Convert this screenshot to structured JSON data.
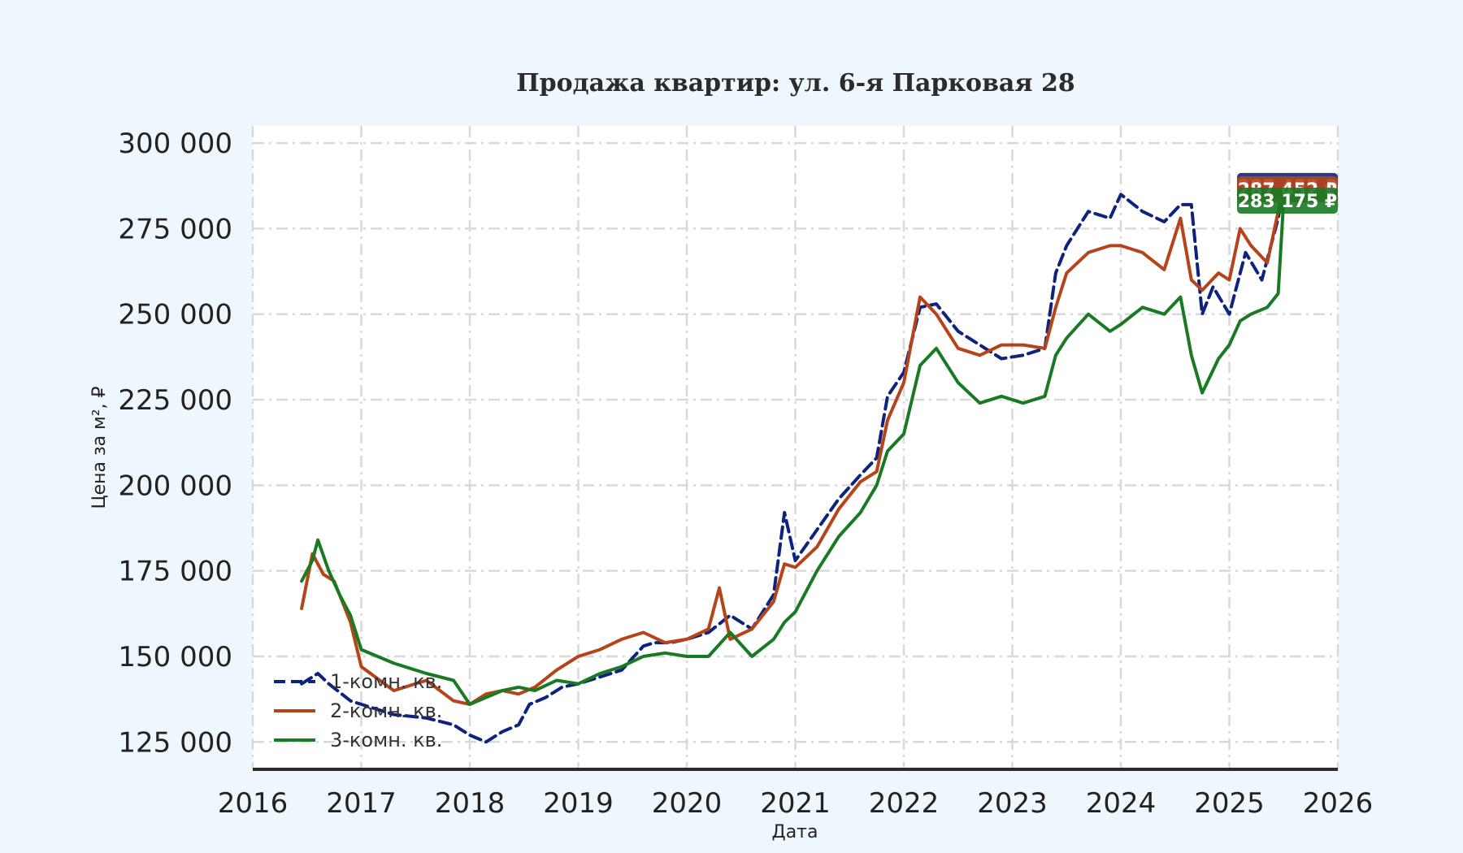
{
  "chart_data": {
    "type": "line",
    "title": "Продажа квартир: ул. 6-я Парковая 28",
    "xlabel": "Дата",
    "ylabel": "Цена за м², ₽",
    "xlim": [
      2016.0,
      2026.0
    ],
    "ylim": [
      117000,
      305000
    ],
    "x_ticks": [
      2016,
      2017,
      2018,
      2019,
      2020,
      2021,
      2022,
      2023,
      2024,
      2025,
      2026
    ],
    "x_tick_labels": [
      "2016",
      "2017",
      "2018",
      "2019",
      "2020",
      "2021",
      "2022",
      "2023",
      "2024",
      "2025",
      "2026"
    ],
    "y_ticks": [
      125000,
      150000,
      175000,
      200000,
      225000,
      250000,
      275000,
      300000
    ],
    "y_tick_labels": [
      "125 000",
      "150 000",
      "175 000",
      "200 000",
      "225 000",
      "250 000",
      "275 000",
      "300 000"
    ],
    "grid": true,
    "legend_position": "bottom-left",
    "series": [
      {
        "name": "1-комн. кв.",
        "color": "#0d237d",
        "dash": "dashed",
        "last_value_label": "287 452 ₽",
        "x": [
          2016.45,
          2016.6,
          2016.7,
          2016.9,
          2017.0,
          2017.3,
          2017.6,
          2017.85,
          2018.0,
          2018.15,
          2018.3,
          2018.45,
          2018.55,
          2018.7,
          2018.85,
          2019.0,
          2019.2,
          2019.4,
          2019.6,
          2019.7,
          2019.85,
          2020.0,
          2020.2,
          2020.4,
          2020.6,
          2020.8,
          2020.9,
          2021.0,
          2021.2,
          2021.4,
          2021.6,
          2021.75,
          2021.85,
          2022.0,
          2022.15,
          2022.3,
          2022.5,
          2022.7,
          2022.9,
          2023.1,
          2023.3,
          2023.4,
          2023.5,
          2023.7,
          2023.9,
          2024.0,
          2024.2,
          2024.4,
          2024.55,
          2024.65,
          2024.75,
          2024.85,
          2025.0,
          2025.15,
          2025.3,
          2025.45,
          2025.5
        ],
        "y": [
          142000,
          145000,
          142000,
          137000,
          136000,
          133000,
          132000,
          130000,
          127000,
          125000,
          128000,
          130000,
          136000,
          138000,
          141000,
          142000,
          144000,
          146000,
          153000,
          154000,
          154000,
          155000,
          157000,
          162000,
          158000,
          168000,
          192000,
          178000,
          187000,
          196000,
          203000,
          208000,
          226000,
          233000,
          252000,
          253000,
          245000,
          241000,
          237000,
          238000,
          240000,
          262000,
          270000,
          280000,
          278000,
          285000,
          280000,
          277000,
          282000,
          282000,
          250000,
          258000,
          250000,
          268000,
          260000,
          278000,
          287452
        ]
      },
      {
        "name": "2-комн. кв.",
        "color": "#b5441a",
        "dash": "solid",
        "last_value_label": "287 452 ₽",
        "x": [
          2016.45,
          2016.55,
          2016.65,
          2016.75,
          2016.9,
          2017.0,
          2017.3,
          2017.6,
          2017.85,
          2018.0,
          2018.15,
          2018.3,
          2018.45,
          2018.6,
          2018.8,
          2019.0,
          2019.2,
          2019.4,
          2019.6,
          2019.8,
          2020.0,
          2020.2,
          2020.3,
          2020.4,
          2020.6,
          2020.8,
          2020.9,
          2021.0,
          2021.2,
          2021.4,
          2021.6,
          2021.75,
          2021.85,
          2022.0,
          2022.15,
          2022.3,
          2022.5,
          2022.7,
          2022.9,
          2023.1,
          2023.3,
          2023.4,
          2023.5,
          2023.7,
          2023.9,
          2024.0,
          2024.2,
          2024.4,
          2024.55,
          2024.65,
          2024.75,
          2024.9,
          2025.0,
          2025.1,
          2025.2,
          2025.35,
          2025.5
        ],
        "y": [
          164000,
          180000,
          174000,
          172000,
          160000,
          147000,
          140000,
          143000,
          137000,
          136000,
          139000,
          140000,
          139000,
          141000,
          146000,
          150000,
          152000,
          155000,
          157000,
          154000,
          155000,
          158000,
          170000,
          155000,
          158000,
          166000,
          177000,
          176000,
          182000,
          193000,
          201000,
          204000,
          219000,
          230000,
          255000,
          250000,
          240000,
          238000,
          241000,
          241000,
          240000,
          252000,
          262000,
          268000,
          270000,
          270000,
          268000,
          263000,
          278000,
          260000,
          257000,
          262000,
          260000,
          275000,
          270000,
          265000,
          287452
        ]
      },
      {
        "name": "3-комн. кв.",
        "color": "#1a7a24",
        "dash": "solid",
        "last_value_label": "283 175 ₽",
        "x": [
          2016.45,
          2016.55,
          2016.6,
          2016.7,
          2016.8,
          2016.9,
          2017.0,
          2017.3,
          2017.6,
          2017.85,
          2018.0,
          2018.15,
          2018.3,
          2018.45,
          2018.6,
          2018.8,
          2019.0,
          2019.2,
          2019.4,
          2019.6,
          2019.8,
          2020.0,
          2020.2,
          2020.4,
          2020.6,
          2020.8,
          2020.9,
          2021.0,
          2021.2,
          2021.4,
          2021.6,
          2021.75,
          2021.85,
          2022.0,
          2022.15,
          2022.3,
          2022.5,
          2022.7,
          2022.9,
          2023.1,
          2023.3,
          2023.4,
          2023.5,
          2023.7,
          2023.9,
          2024.0,
          2024.2,
          2024.4,
          2024.55,
          2024.65,
          2024.75,
          2024.9,
          2025.0,
          2025.1,
          2025.2,
          2025.35,
          2025.45,
          2025.5
        ],
        "y": [
          172000,
          178000,
          184000,
          175000,
          168000,
          162000,
          152000,
          148000,
          145000,
          143000,
          136000,
          138000,
          140000,
          141000,
          140000,
          143000,
          142000,
          145000,
          147000,
          150000,
          151000,
          150000,
          150000,
          157000,
          150000,
          155000,
          160000,
          163000,
          175000,
          185000,
          192000,
          200000,
          210000,
          215000,
          235000,
          240000,
          230000,
          224000,
          226000,
          224000,
          226000,
          238000,
          243000,
          250000,
          245000,
          247000,
          252000,
          250000,
          255000,
          238000,
          227000,
          237000,
          241000,
          248000,
          250000,
          252000,
          256000,
          283175
        ]
      }
    ]
  }
}
